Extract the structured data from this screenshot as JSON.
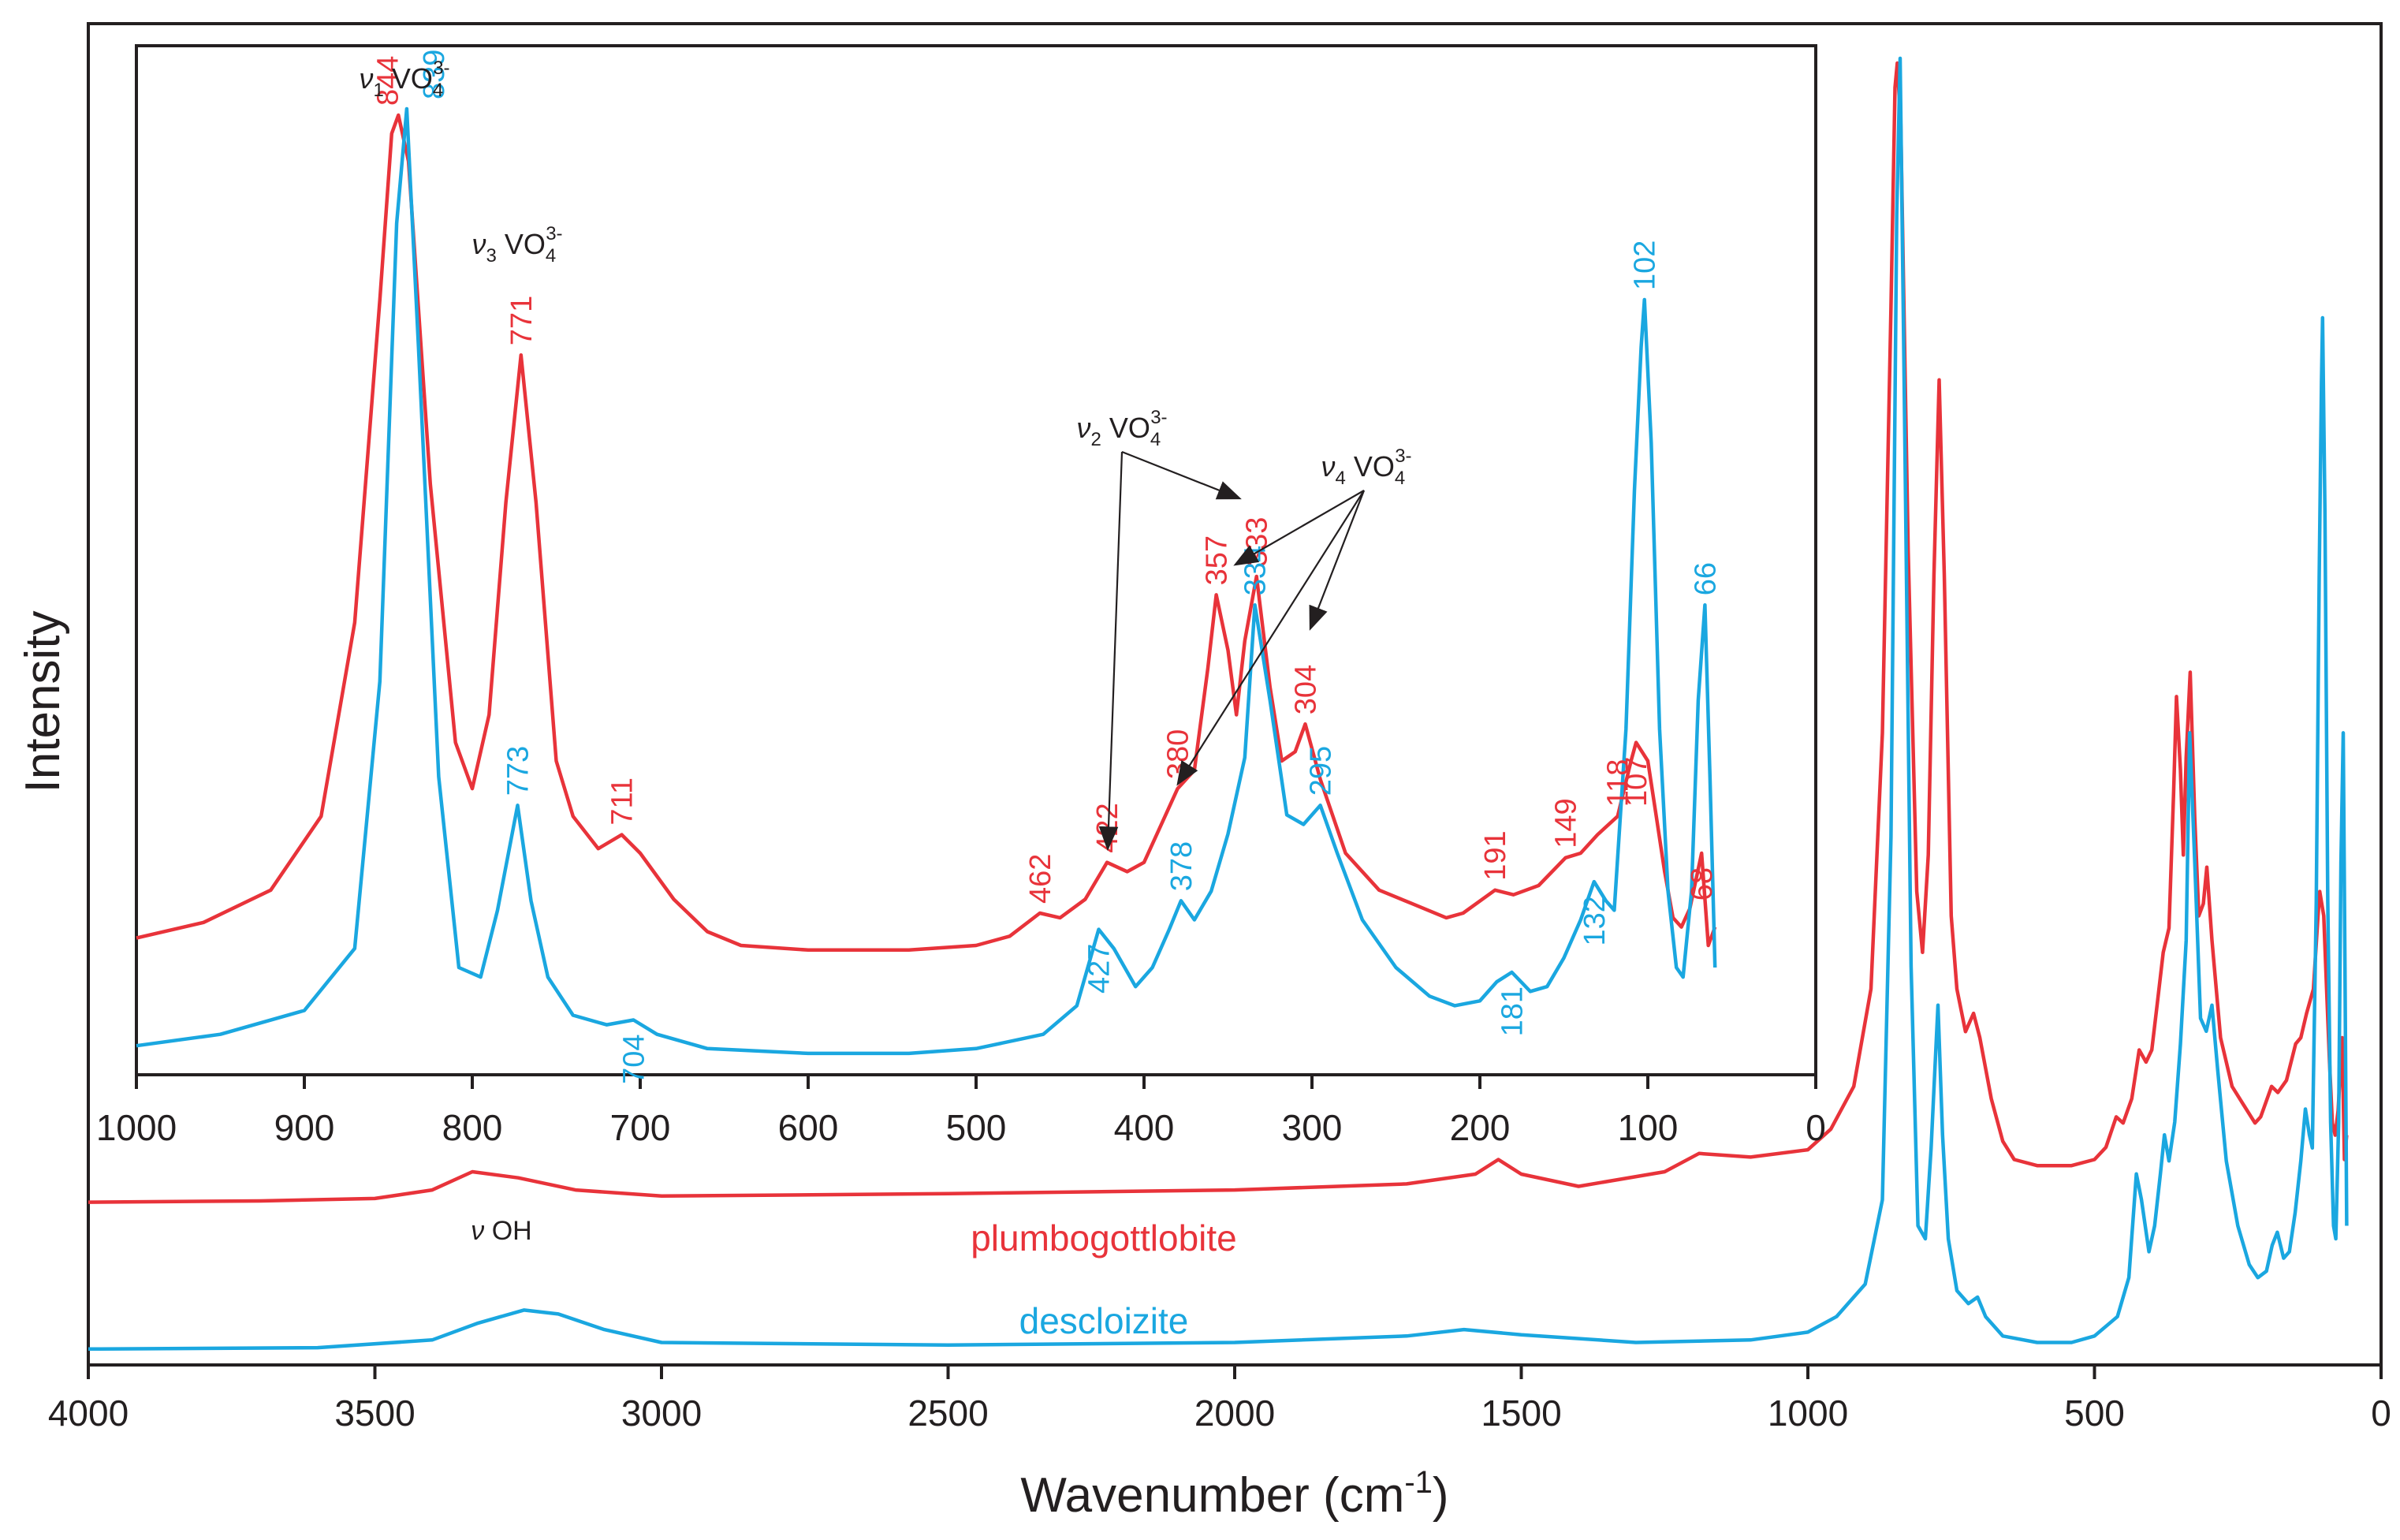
{
  "chart_data": [
    {
      "type": "line",
      "xlabel": "Wavenumber (cm",
      "xlabel_sup": "-1",
      "xlabel_close": ")",
      "ylabel": "Intensity",
      "x_ticks": [
        "4000",
        "3500",
        "3000",
        "2500",
        "2000",
        "1500",
        "1000",
        "500",
        "0"
      ],
      "xlim": [
        4000,
        0
      ],
      "x_reversed": true,
      "grid": false,
      "series": [
        {
          "name": "plumbogottlobite",
          "color": "#E8333A",
          "points": [
            [
              4000,
              0.065
            ],
            [
              3700,
              0.066
            ],
            [
              3500,
              0.068
            ],
            [
              3400,
              0.075
            ],
            [
              3330,
              0.09
            ],
            [
              3250,
              0.085
            ],
            [
              3150,
              0.075
            ],
            [
              3000,
              0.07
            ],
            [
              2500,
              0.072
            ],
            [
              2000,
              0.075
            ],
            [
              1700,
              0.08
            ],
            [
              1580,
              0.088
            ],
            [
              1540,
              0.1
            ],
            [
              1500,
              0.088
            ],
            [
              1400,
              0.078
            ],
            [
              1250,
              0.09
            ],
            [
              1190,
              0.105
            ],
            [
              1100,
              0.102
            ],
            [
              1000,
              0.108
            ],
            [
              960,
              0.125
            ],
            [
              920,
              0.16
            ],
            [
              890,
              0.24
            ],
            [
              870,
              0.45
            ],
            [
              855,
              0.8
            ],
            [
              848,
              0.98
            ],
            [
              844,
              1.0
            ],
            [
              838,
              0.95
            ],
            [
              825,
              0.6
            ],
            [
              810,
              0.32
            ],
            [
              800,
              0.27
            ],
            [
              790,
              0.35
            ],
            [
              780,
              0.58
            ],
            [
              771,
              0.74
            ],
            [
              762,
              0.58
            ],
            [
              750,
              0.3
            ],
            [
              740,
              0.24
            ],
            [
              725,
              0.205
            ],
            [
              711,
              0.22
            ],
            [
              700,
              0.2
            ],
            [
              680,
              0.15
            ],
            [
              660,
              0.115
            ],
            [
              640,
              0.1
            ],
            [
              600,
              0.095
            ],
            [
              540,
              0.095
            ],
            [
              500,
              0.1
            ],
            [
              480,
              0.11
            ],
            [
              462,
              0.135
            ],
            [
              450,
              0.13
            ],
            [
              435,
              0.15
            ],
            [
              422,
              0.19
            ],
            [
              410,
              0.18
            ],
            [
              400,
              0.19
            ],
            [
              390,
              0.23
            ],
            [
              380,
              0.27
            ],
            [
              370,
              0.29
            ],
            [
              362,
              0.4
            ],
            [
              357,
              0.48
            ],
            [
              350,
              0.42
            ],
            [
              345,
              0.35
            ],
            [
              340,
              0.43
            ],
            [
              333,
              0.5
            ],
            [
              325,
              0.38
            ],
            [
              318,
              0.3
            ],
            [
              310,
              0.31
            ],
            [
              304,
              0.34
            ],
            [
              295,
              0.28
            ],
            [
              280,
              0.2
            ],
            [
              260,
              0.16
            ],
            [
              240,
              0.145
            ],
            [
              220,
              0.13
            ],
            [
              210,
              0.135
            ],
            [
              191,
              0.16
            ],
            [
              180,
              0.155
            ],
            [
              165,
              0.165
            ],
            [
              149,
              0.195
            ],
            [
              140,
              0.2
            ],
            [
              130,
              0.22
            ],
            [
              118,
              0.24
            ],
            [
              110,
              0.3
            ],
            [
              107,
              0.32
            ],
            [
              100,
              0.3
            ],
            [
              95,
              0.24
            ],
            [
              90,
              0.18
            ],
            [
              85,
              0.13
            ],
            [
              80,
              0.12
            ],
            [
              75,
              0.14
            ],
            [
              68,
              0.2
            ],
            [
              64,
              0.1
            ],
            [
              60,
              0.12
            ]
          ]
        },
        {
          "name": "descloizite",
          "color": "#1AA7E0",
          "points": [
            [
              4000,
              0.005
            ],
            [
              3600,
              0.006
            ],
            [
              3400,
              0.012
            ],
            [
              3320,
              0.025
            ],
            [
              3240,
              0.035
            ],
            [
              3180,
              0.032
            ],
            [
              3100,
              0.02
            ],
            [
              3000,
              0.01
            ],
            [
              2500,
              0.008
            ],
            [
              2000,
              0.01
            ],
            [
              1700,
              0.015
            ],
            [
              1600,
              0.02
            ],
            [
              1500,
              0.016
            ],
            [
              1300,
              0.01
            ],
            [
              1100,
              0.012
            ],
            [
              1000,
              0.018
            ],
            [
              950,
              0.03
            ],
            [
              900,
              0.055
            ],
            [
              870,
              0.12
            ],
            [
              855,
              0.4
            ],
            [
              845,
              0.88
            ],
            [
              839,
              1.0
            ],
            [
              832,
              0.75
            ],
            [
              820,
              0.3
            ],
            [
              808,
              0.1
            ],
            [
              795,
              0.09
            ],
            [
              785,
              0.16
            ],
            [
              773,
              0.27
            ],
            [
              765,
              0.17
            ],
            [
              755,
              0.09
            ],
            [
              740,
              0.05
            ],
            [
              720,
              0.04
            ],
            [
              704,
              0.045
            ],
            [
              690,
              0.03
            ],
            [
              660,
              0.015
            ],
            [
              600,
              0.01
            ],
            [
              540,
              0.01
            ],
            [
              500,
              0.015
            ],
            [
              460,
              0.03
            ],
            [
              440,
              0.06
            ],
            [
              427,
              0.14
            ],
            [
              418,
              0.12
            ],
            [
              405,
              0.08
            ],
            [
              395,
              0.1
            ],
            [
              385,
              0.14
            ],
            [
              378,
              0.17
            ],
            [
              370,
              0.15
            ],
            [
              360,
              0.18
            ],
            [
              350,
              0.24
            ],
            [
              340,
              0.32
            ],
            [
              334,
              0.48
            ],
            [
              325,
              0.38
            ],
            [
              315,
              0.26
            ],
            [
              305,
              0.25
            ],
            [
              295,
              0.27
            ],
            [
              285,
              0.22
            ],
            [
              270,
              0.15
            ],
            [
              250,
              0.1
            ],
            [
              230,
              0.07
            ],
            [
              215,
              0.06
            ],
            [
              200,
              0.065
            ],
            [
              190,
              0.085
            ],
            [
              181,
              0.095
            ],
            [
              170,
              0.075
            ],
            [
              160,
              0.08
            ],
            [
              150,
              0.11
            ],
            [
              140,
              0.15
            ],
            [
              132,
              0.19
            ],
            [
              125,
              0.17
            ],
            [
              120,
              0.16
            ],
            [
              113,
              0.35
            ],
            [
              108,
              0.6
            ],
            [
              104,
              0.75
            ],
            [
              102,
              0.8
            ],
            [
              98,
              0.65
            ],
            [
              93,
              0.35
            ],
            [
              88,
              0.18
            ],
            [
              83,
              0.1
            ],
            [
              79,
              0.09
            ],
            [
              74,
              0.18
            ],
            [
              70,
              0.38
            ],
            [
              66,
              0.48
            ],
            [
              63,
              0.3
            ],
            [
              60,
              0.1
            ]
          ]
        }
      ],
      "series_labels": [
        "plumbogottlobite",
        "descloizite"
      ],
      "annotations": [
        {
          "label": "ν",
          "mode": "OH",
          "x": 3330
        }
      ]
    },
    {
      "type": "line",
      "inset": true,
      "x_ticks": [
        "1000",
        "900",
        "800",
        "700",
        "600",
        "500",
        "400",
        "300",
        "200",
        "100",
        "0"
      ],
      "xlim": [
        1000,
        0
      ],
      "x_reversed": true,
      "grid": false,
      "peak_labels": [
        {
          "series": "plumbogottlobite",
          "x": 844,
          "text": "844"
        },
        {
          "series": "descloizite",
          "x": 839,
          "text": "839"
        },
        {
          "series": "plumbogottlobite",
          "x": 771,
          "text": "771"
        },
        {
          "series": "descloizite",
          "x": 773,
          "text": "773"
        },
        {
          "series": "plumbogottlobite",
          "x": 711,
          "text": "711"
        },
        {
          "series": "descloizite",
          "x": 704,
          "text": "704"
        },
        {
          "series": "plumbogottlobite",
          "x": 462,
          "text": "462"
        },
        {
          "series": "plumbogottlobite",
          "x": 422,
          "text": "422"
        },
        {
          "series": "descloizite",
          "x": 427,
          "text": "427"
        },
        {
          "series": "plumbogottlobite",
          "x": 380,
          "text": "380"
        },
        {
          "series": "descloizite",
          "x": 378,
          "text": "378"
        },
        {
          "series": "plumbogottlobite",
          "x": 357,
          "text": "357"
        },
        {
          "series": "plumbogottlobite",
          "x": 333,
          "text": "333"
        },
        {
          "series": "descloizite",
          "x": 334,
          "text": "334"
        },
        {
          "series": "plumbogottlobite",
          "x": 304,
          "text": "304"
        },
        {
          "series": "descloizite",
          "x": 295,
          "text": "295"
        },
        {
          "series": "plumbogottlobite",
          "x": 191,
          "text": "191"
        },
        {
          "series": "descloizite",
          "x": 181,
          "text": "181"
        },
        {
          "series": "plumbogottlobite",
          "x": 149,
          "text": "149"
        },
        {
          "series": "descloizite",
          "x": 132,
          "text": "132"
        },
        {
          "series": "plumbogottlobite",
          "x": 118,
          "text": "118"
        },
        {
          "series": "plumbogottlobite",
          "x": 107,
          "text": "107"
        },
        {
          "series": "descloizite",
          "x": 102,
          "text": "102"
        },
        {
          "series": "plumbogottlobite",
          "x": 68,
          "text": "68"
        },
        {
          "series": "descloizite",
          "x": 66,
          "text": "66"
        }
      ],
      "mode_labels": [
        {
          "label": "ν",
          "sub": "1",
          "ion": "VO",
          "ion_sub": "4",
          "ion_sup": "3-"
        },
        {
          "label": "ν",
          "sub": "3",
          "ion": "VO",
          "ion_sub": "4",
          "ion_sup": "3-"
        },
        {
          "label": "ν",
          "sub": "2",
          "ion": "VO",
          "ion_sub": "4",
          "ion_sup": "3-",
          "points_to": [
            422,
            333
          ]
        },
        {
          "label": "ν",
          "sub": "4",
          "ion": "VO",
          "ion_sub": "4",
          "ion_sup": "3-",
          "points_to": [
            380,
            357,
            304
          ]
        }
      ]
    }
  ]
}
